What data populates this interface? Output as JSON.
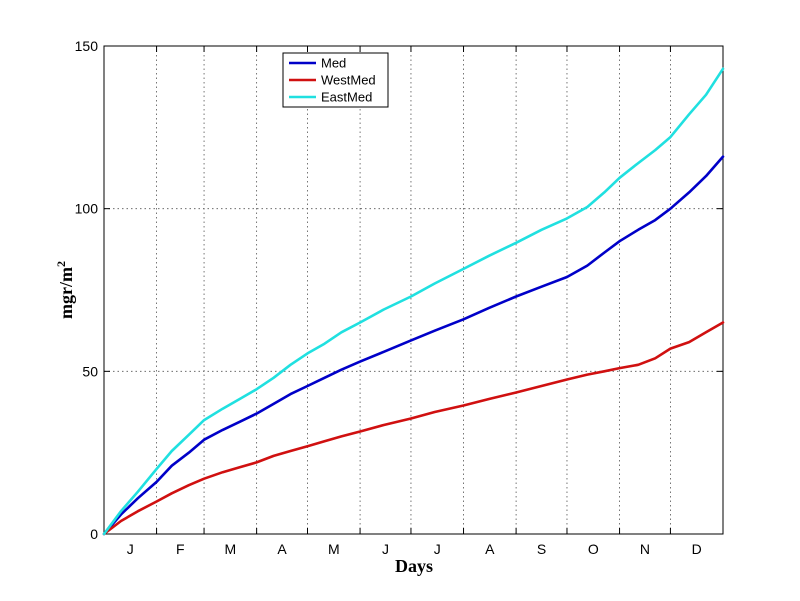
{
  "chart_data": {
    "type": "line",
    "title": "",
    "xlabel": "Days",
    "ylabel_base": "mgr/m",
    "ylabel_sup": "2",
    "xlim": [
      0,
      365
    ],
    "ylim": [
      0,
      150
    ],
    "yticks": [
      0,
      50,
      100,
      150
    ],
    "ytick_labels": [
      "0",
      "50",
      "100",
      "150"
    ],
    "month_boundaries": [
      31,
      59,
      90,
      120,
      151,
      181,
      212,
      243,
      273,
      304,
      334
    ],
    "month_labels": [
      "J",
      "F",
      "M",
      "A",
      "M",
      "J",
      "J",
      "A",
      "S",
      "O",
      "N",
      "D"
    ],
    "grid": true,
    "legend_position": "top-center",
    "x": [
      0,
      10,
      20,
      31,
      40,
      50,
      59,
      70,
      80,
      90,
      100,
      110,
      120,
      130,
      140,
      151,
      165,
      181,
      195,
      212,
      227,
      243,
      258,
      273,
      285,
      295,
      304,
      315,
      325,
      334,
      345,
      355,
      365
    ],
    "series": [
      {
        "name": "Med",
        "color": "#0000c8",
        "values": [
          0,
          6,
          11,
          16,
          21,
          25,
          29,
          32,
          34.5,
          37,
          40,
          43,
          45.5,
          48,
          50.5,
          53,
          56,
          59.5,
          62.5,
          66,
          69.5,
          73,
          76,
          79,
          82.5,
          86.5,
          90,
          93.5,
          96.5,
          100,
          105,
          110,
          116
        ]
      },
      {
        "name": "WestMed",
        "color": "#d01010",
        "values": [
          0,
          4,
          7,
          10,
          12.5,
          15,
          17,
          19,
          20.5,
          22,
          24,
          25.5,
          27,
          28.5,
          30,
          31.5,
          33.5,
          35.5,
          37.5,
          39.5,
          41.5,
          43.5,
          45.5,
          47.5,
          49,
          50,
          51,
          52,
          54,
          57,
          59,
          62,
          65
        ]
      },
      {
        "name": "EastMed",
        "color": "#20e0e0",
        "values": [
          0,
          7,
          13,
          20,
          25.5,
          30.5,
          35,
          38.5,
          41.5,
          44.5,
          48,
          52,
          55.5,
          58.5,
          62,
          65,
          69,
          73,
          77,
          81.5,
          85.5,
          89.5,
          93.5,
          97,
          100.5,
          105,
          109.5,
          114,
          118,
          122,
          129,
          135,
          143
        ]
      }
    ]
  }
}
